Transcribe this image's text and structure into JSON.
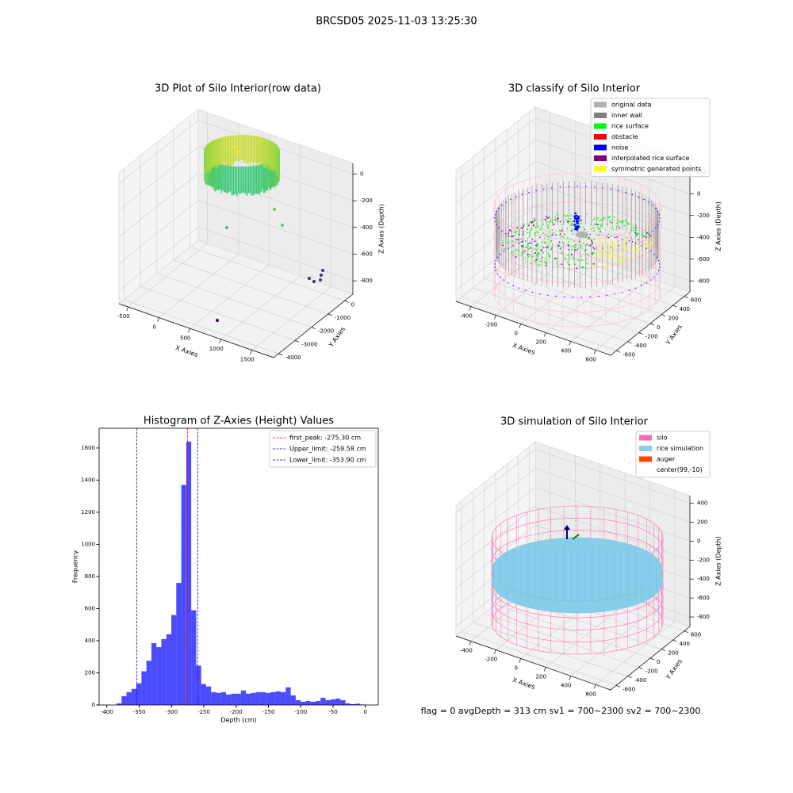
{
  "title": "BRCSD05 2025-11-03 13:25:30",
  "footer": "flag = 0     avgDepth = 313 cm  sv1 = 700~2300  sv2 = 700~2300",
  "chart_data": [
    {
      "type": "scatter3d",
      "title": "3D Plot of Silo Interior(row data)",
      "xlabel": "X Axies",
      "ylabel": "Y Axies",
      "zlabel": "Z Axies (Depth)",
      "xlim": [
        -650,
        1850
      ],
      "ylim": [
        -4300,
        500
      ],
      "zlim": [
        -900,
        80
      ],
      "xticks": [
        -500,
        0,
        500,
        1000,
        1500
      ],
      "yticks": [
        -4000,
        -3000,
        -2000,
        -1000,
        0
      ],
      "zticks": [
        -800,
        -600,
        -400,
        -200,
        0
      ]
    },
    {
      "type": "scatter3d",
      "title": "3D classify of Silo Interior",
      "xlabel": "X Axies",
      "ylabel": "Y Axies",
      "zlabel": "Z Axies (Depth)",
      "xlim": [
        -520,
        720
      ],
      "ylim": [
        -700,
        700
      ],
      "zlim": [
        -900,
        300
      ],
      "xticks": [
        -400,
        -200,
        0,
        200,
        400,
        600
      ],
      "yticks": [
        -600,
        -400,
        -200,
        0,
        200,
        400,
        600
      ],
      "zticks": [
        -800,
        -600,
        -400,
        -200,
        0,
        200
      ],
      "legend": [
        {
          "name": "original data",
          "color": "#b0b0b0"
        },
        {
          "name": "inner wall",
          "color": "#808080"
        },
        {
          "name": "rice surface",
          "color": "#00ff00"
        },
        {
          "name": "obstacle",
          "color": "#ff0000"
        },
        {
          "name": "noise",
          "color": "#0000ff"
        },
        {
          "name": "interpolated rice surface",
          "color": "#800080"
        },
        {
          "name": "symmetric generated points",
          "color": "#ffff00"
        }
      ]
    },
    {
      "type": "histogram",
      "title": "Histogram of Z-Axies (Height) Values",
      "xlabel": "Depth (cm)",
      "ylabel": "Frequency",
      "bins": [
        -385,
        -377.3,
        -369.6,
        -361.9,
        -354.2,
        -346.5,
        -338.8,
        -331.1,
        -323.4,
        -315.7,
        -308,
        -300.3,
        -292.6,
        -284.9,
        -277.2,
        -269.5,
        -261.8,
        -254.1,
        -246.4,
        -238.7,
        -231,
        -223.3,
        -215.6,
        -207.9,
        -200.2,
        -192.5,
        -184.8,
        -177.1,
        -169.4,
        -161.7,
        -154,
        -146.3,
        -138.6,
        -130.9,
        -123.2,
        -115.5,
        -107.8,
        -100.1,
        -92.4,
        -84.7,
        -77,
        -69.3,
        -61.6,
        -53.9,
        -46.2,
        -38.5,
        -30.8,
        -23.1,
        -15.4,
        -7.7,
        0
      ],
      "values": [
        10,
        55,
        80,
        100,
        135,
        210,
        275,
        385,
        360,
        410,
        440,
        560,
        760,
        1370,
        1640,
        590,
        245,
        130,
        115,
        80,
        75,
        80,
        65,
        70,
        70,
        90,
        70,
        75,
        80,
        80,
        75,
        80,
        85,
        80,
        110,
        60,
        30,
        20,
        25,
        20,
        25,
        45,
        30,
        35,
        40,
        30,
        10,
        5,
        8,
        3
      ],
      "color": "blue",
      "xlim": [
        -412,
        20
      ],
      "ylim": [
        0,
        1723
      ],
      "xticks": [
        -400,
        -350,
        -300,
        -250,
        -200,
        -150,
        -100,
        -50,
        0
      ],
      "yticks": [
        0,
        200,
        400,
        600,
        800,
        1000,
        1200,
        1400,
        1600
      ],
      "vlines": [
        {
          "label": "first_peak: -275.30 cm",
          "value": -275.3,
          "color": "red"
        },
        {
          "label": "Upper_limit: -259.58 cm",
          "value": -259.58,
          "color": "blue"
        },
        {
          "label": "Lower_limit: -353.90 cm",
          "value": -353.9,
          "color": "blue"
        }
      ],
      "legend": "upper right"
    },
    {
      "type": "scatter3d",
      "title": "3D simulation of Silo Interior",
      "xlabel": "X Axies",
      "ylabel": "Y Axies",
      "zlabel": "Z Axies (Depth)",
      "xlim": [
        -520,
        720
      ],
      "ylim": [
        -700,
        700
      ],
      "zlim": [
        -900,
        480
      ],
      "xticks": [
        -400,
        -200,
        0,
        200,
        400,
        600
      ],
      "yticks": [
        -600,
        -400,
        -200,
        0,
        200,
        400,
        600
      ],
      "zticks": [
        -800,
        -600,
        -400,
        -200,
        0,
        200,
        400
      ],
      "legend": [
        {
          "name": "silo",
          "color": "#ff69b4"
        },
        {
          "name": "rice simulation",
          "color": "#87ceeb"
        },
        {
          "name": "auger",
          "color": "#ff4500"
        },
        {
          "name": "center(99,-10)"
        }
      ]
    }
  ]
}
